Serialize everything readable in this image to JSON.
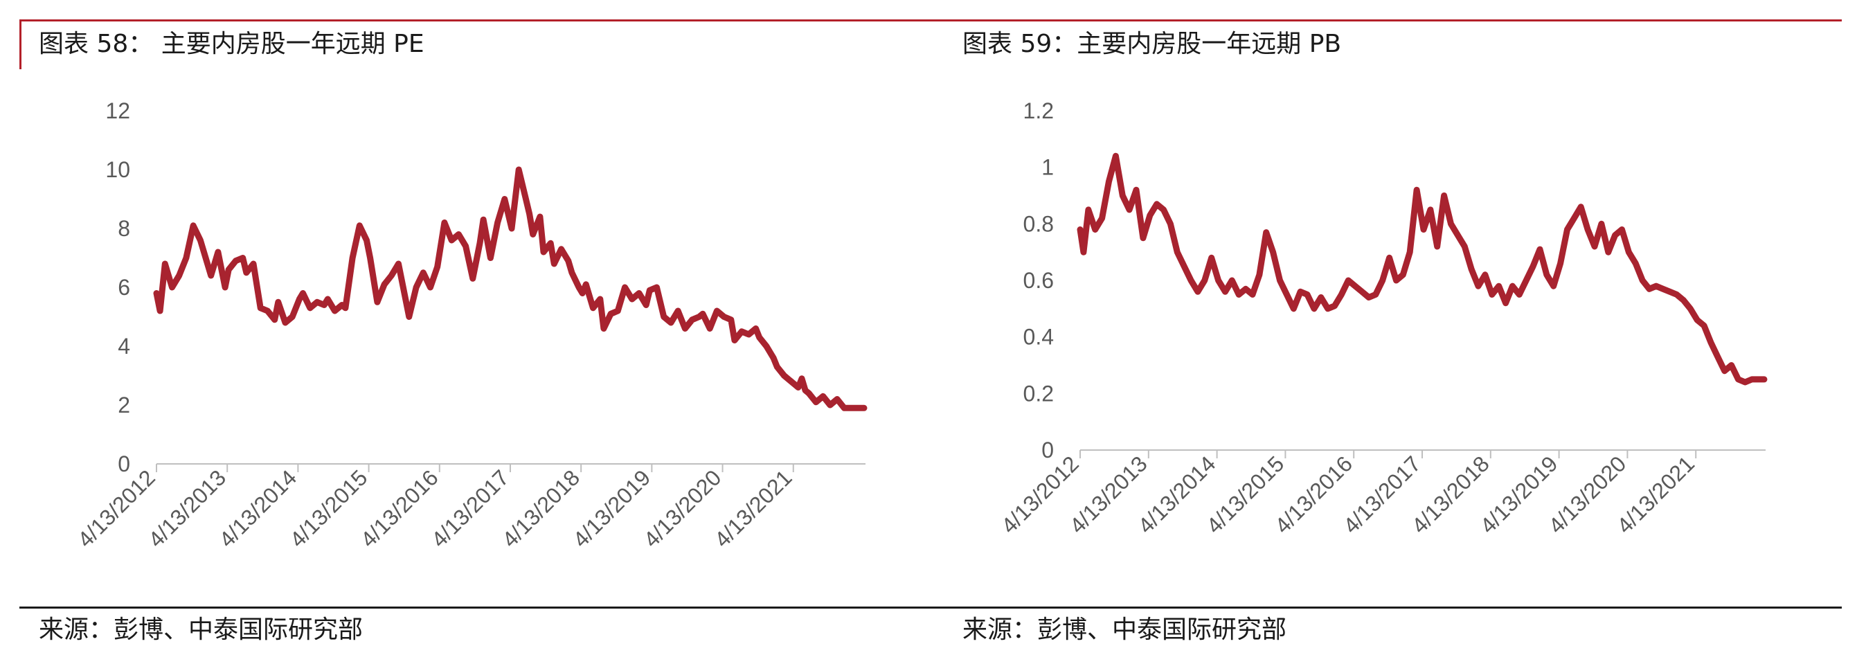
{
  "charts": [
    {
      "title": "图表 58：  主要内房股一年远期 PE",
      "source": "来源：彭博、中泰国际研究部"
    },
    {
      "title": "图表 59：主要内房股一年远期 PB",
      "source": "来源：彭博、中泰国际研究部"
    }
  ],
  "colors": {
    "accent": "#b3202a",
    "line": "#a8232f",
    "axis": "#bfbfbf",
    "text": "#595959"
  },
  "chart_data": [
    {
      "type": "line",
      "title": "图表 58：  主要内房股一年远期 PE",
      "xlabel": "",
      "ylabel": "",
      "ylim": [
        0,
        12
      ],
      "yticks": [
        0,
        2,
        4,
        6,
        8,
        10,
        12
      ],
      "ytick_labels": [
        "0",
        "2",
        "4",
        "6",
        "8",
        "10",
        "12"
      ],
      "xlim": [
        2012.28,
        2022.3
      ],
      "xtick_labels": [
        "4/13/2012",
        "4/13/2013",
        "4/13/2014",
        "4/13/2015",
        "4/13/2016",
        "4/13/2017",
        "4/13/2018",
        "4/13/2019",
        "4/13/2020",
        "4/13/2021"
      ],
      "grid": false,
      "legend": "none",
      "series": [
        {
          "name": "PE",
          "x": [
            2012.28,
            2012.33,
            2012.4,
            2012.5,
            2012.6,
            2012.7,
            2012.8,
            2012.9,
            2013.0,
            2013.05,
            2013.15,
            2013.25,
            2013.3,
            2013.4,
            2013.5,
            2013.55,
            2013.65,
            2013.75,
            2013.85,
            2013.95,
            2014.0,
            2014.1,
            2014.2,
            2014.3,
            2014.35,
            2014.45,
            2014.55,
            2014.65,
            2014.7,
            2014.8,
            2014.9,
            2014.95,
            2015.05,
            2015.15,
            2015.25,
            2015.3,
            2015.4,
            2015.5,
            2015.6,
            2015.7,
            2015.8,
            2015.85,
            2015.95,
            2016.05,
            2016.15,
            2016.25,
            2016.35,
            2016.45,
            2016.55,
            2016.65,
            2016.75,
            2016.85,
            2016.9,
            2017.0,
            2017.1,
            2017.2,
            2017.3,
            2017.4,
            2017.5,
            2017.55,
            2017.6,
            2017.7,
            2017.75,
            2017.85,
            2017.9,
            2018.0,
            2018.1,
            2018.15,
            2018.25,
            2018.3,
            2018.35,
            2018.45,
            2018.55,
            2018.6,
            2018.7,
            2018.8,
            2018.9,
            2019.0,
            2019.1,
            2019.2,
            2019.25,
            2019.35,
            2019.45,
            2019.55,
            2019.65,
            2019.75,
            2019.85,
            2019.95,
            2020.0,
            2020.1,
            2020.2,
            2020.3,
            2020.4,
            2020.45,
            2020.55,
            2020.65,
            2020.75,
            2020.8,
            2020.9,
            2021.0,
            2021.05,
            2021.15,
            2021.25,
            2021.35,
            2021.4,
            2021.45,
            2021.5,
            2021.6,
            2021.7,
            2021.8,
            2021.9,
            2022.0,
            2022.1,
            2022.2,
            2022.28
          ],
          "values": [
            5.8,
            5.2,
            6.8,
            6.0,
            6.4,
            7.0,
            8.1,
            7.6,
            6.8,
            6.4,
            7.2,
            6.0,
            6.6,
            6.9,
            7.0,
            6.5,
            6.8,
            5.3,
            5.2,
            4.9,
            5.5,
            4.8,
            5.0,
            5.6,
            5.8,
            5.3,
            5.5,
            5.4,
            5.6,
            5.2,
            5.4,
            5.3,
            7.0,
            8.1,
            7.6,
            7.0,
            5.5,
            6.1,
            6.4,
            6.8,
            5.6,
            5.0,
            6.0,
            6.5,
            6.0,
            6.7,
            8.2,
            7.6,
            7.8,
            7.4,
            6.3,
            7.5,
            8.3,
            7.0,
            8.2,
            9.0,
            8.0,
            10.0,
            9.0,
            8.5,
            7.8,
            8.4,
            7.2,
            7.5,
            6.8,
            7.3,
            6.9,
            6.5,
            6.0,
            5.8,
            6.1,
            5.3,
            5.6,
            4.6,
            5.1,
            5.2,
            6.0,
            5.6,
            5.8,
            5.4,
            5.9,
            6.0,
            5.0,
            4.8,
            5.2,
            4.6,
            4.9,
            5.0,
            5.1,
            4.6,
            5.2,
            5.0,
            4.9,
            4.2,
            4.5,
            4.4,
            4.6,
            4.3,
            4.0,
            3.6,
            3.3,
            3.0,
            2.8,
            2.6,
            2.9,
            2.5,
            2.4,
            2.1,
            2.3,
            2.0,
            2.2,
            1.9,
            1.9,
            1.9,
            1.9
          ]
        }
      ]
    },
    {
      "type": "line",
      "title": "图表 59：主要内房股一年远期 PB",
      "xlabel": "",
      "ylabel": "",
      "ylim": [
        0,
        1.2
      ],
      "yticks": [
        0,
        0.2,
        0.4,
        0.6,
        0.8,
        1.0,
        1.2
      ],
      "ytick_labels": [
        "0",
        "0.2",
        "0.4",
        "0.6",
        "0.8",
        "1",
        "1.2"
      ],
      "xlim": [
        2012.28,
        2022.3
      ],
      "xtick_labels": [
        "4/13/2012",
        "4/13/2013",
        "4/13/2014",
        "4/13/2015",
        "4/13/2016",
        "4/13/2017",
        "4/13/2018",
        "4/13/2019",
        "4/13/2020",
        "4/13/2021"
      ],
      "grid": false,
      "legend": "none",
      "series": [
        {
          "name": "PB",
          "x": [
            2012.28,
            2012.33,
            2012.4,
            2012.5,
            2012.6,
            2012.7,
            2012.8,
            2012.9,
            2013.0,
            2013.1,
            2013.2,
            2013.3,
            2013.4,
            2013.5,
            2013.6,
            2013.7,
            2013.8,
            2013.9,
            2014.0,
            2014.1,
            2014.2,
            2014.3,
            2014.4,
            2014.5,
            2014.6,
            2014.7,
            2014.8,
            2014.9,
            2015.0,
            2015.1,
            2015.2,
            2015.3,
            2015.4,
            2015.5,
            2015.6,
            2015.7,
            2015.8,
            2015.9,
            2016.0,
            2016.1,
            2016.2,
            2016.3,
            2016.4,
            2016.5,
            2016.6,
            2016.7,
            2016.8,
            2016.9,
            2017.0,
            2017.1,
            2017.2,
            2017.3,
            2017.4,
            2017.5,
            2017.6,
            2017.7,
            2017.8,
            2017.9,
            2018.0,
            2018.1,
            2018.2,
            2018.3,
            2018.4,
            2018.5,
            2018.6,
            2018.7,
            2018.8,
            2018.9,
            2019.0,
            2019.1,
            2019.2,
            2019.3,
            2019.4,
            2019.5,
            2019.6,
            2019.7,
            2019.8,
            2019.9,
            2020.0,
            2020.1,
            2020.2,
            2020.3,
            2020.4,
            2020.5,
            2020.6,
            2020.7,
            2020.8,
            2020.9,
            2021.0,
            2021.1,
            2021.2,
            2021.3,
            2021.4,
            2021.5,
            2021.6,
            2021.7,
            2021.8,
            2021.9,
            2022.0,
            2022.1,
            2022.2,
            2022.28
          ],
          "values": [
            0.78,
            0.7,
            0.85,
            0.78,
            0.82,
            0.95,
            1.04,
            0.9,
            0.85,
            0.92,
            0.75,
            0.83,
            0.87,
            0.85,
            0.8,
            0.7,
            0.65,
            0.6,
            0.56,
            0.6,
            0.68,
            0.6,
            0.56,
            0.6,
            0.55,
            0.57,
            0.55,
            0.62,
            0.77,
            0.7,
            0.6,
            0.55,
            0.5,
            0.56,
            0.55,
            0.5,
            0.54,
            0.5,
            0.51,
            0.55,
            0.6,
            0.58,
            0.56,
            0.54,
            0.55,
            0.6,
            0.68,
            0.6,
            0.62,
            0.7,
            0.92,
            0.78,
            0.85,
            0.72,
            0.9,
            0.8,
            0.76,
            0.72,
            0.64,
            0.58,
            0.62,
            0.55,
            0.58,
            0.52,
            0.58,
            0.55,
            0.6,
            0.65,
            0.71,
            0.62,
            0.58,
            0.66,
            0.78,
            0.82,
            0.86,
            0.78,
            0.72,
            0.8,
            0.7,
            0.76,
            0.78,
            0.7,
            0.66,
            0.6,
            0.57,
            0.58,
            0.57,
            0.56,
            0.55,
            0.53,
            0.5,
            0.46,
            0.44,
            0.38,
            0.33,
            0.28,
            0.3,
            0.25,
            0.24,
            0.25,
            0.25,
            0.25
          ]
        }
      ]
    }
  ]
}
